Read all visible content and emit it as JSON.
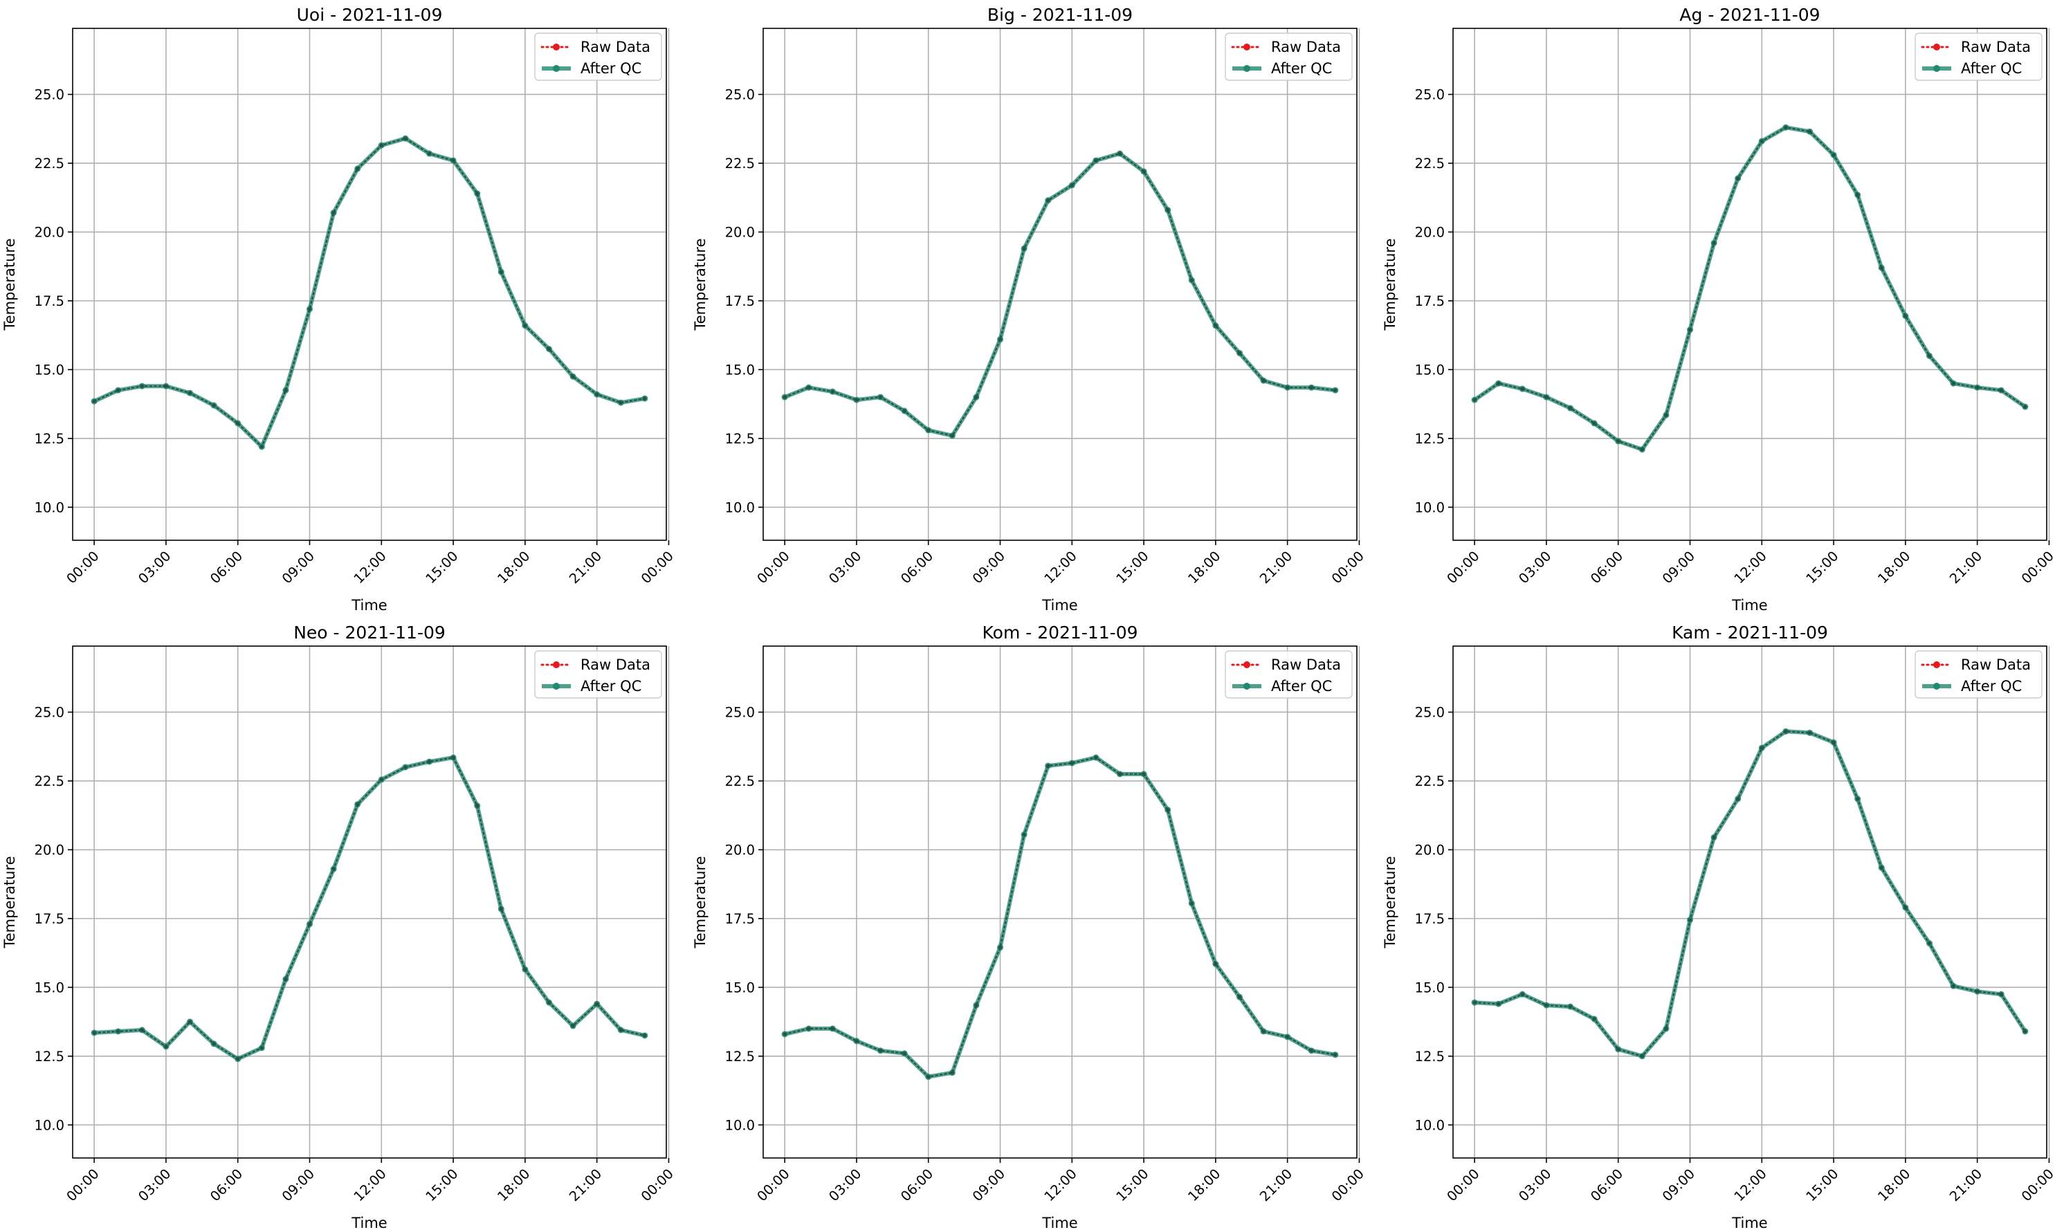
{
  "figure": {
    "layout": "2x3 grid of line charts"
  },
  "chart_data": [
    {
      "type": "line",
      "title": "Uoi - 2021-11-09",
      "xlabel": "Time",
      "ylabel": "Temperature",
      "x_ticks": [
        "00:00",
        "03:00",
        "06:00",
        "09:00",
        "12:00",
        "15:00",
        "18:00",
        "21:00",
        "00:00"
      ],
      "y_ticks": [
        "10.0",
        "12.5",
        "15.0",
        "17.5",
        "20.0",
        "22.5",
        "25.0"
      ],
      "ylim": [
        8.8,
        27.4
      ],
      "xlim_hours": [
        -0.9,
        23.9
      ],
      "grid": true,
      "legend": "top-right",
      "x_hours": [
        0,
        1,
        2,
        3,
        4,
        5,
        6,
        7,
        8,
        9,
        10,
        11,
        12,
        13,
        14,
        15,
        16,
        17,
        18,
        19,
        20,
        21,
        22,
        23
      ],
      "series": [
        {
          "name": "Raw Data",
          "style": "dotted",
          "color": "#e41a1c",
          "values": [
            13.85,
            14.25,
            14.4,
            14.4,
            14.15,
            13.7,
            13.05,
            12.2,
            14.25,
            17.2,
            20.7,
            22.3,
            23.15,
            23.4,
            22.85,
            22.6,
            21.4,
            18.55,
            16.6,
            15.75,
            14.75,
            14.1,
            13.8,
            13.95
          ]
        },
        {
          "name": "After QC",
          "style": "solid",
          "color": "#1f8a70",
          "values": [
            13.85,
            14.25,
            14.4,
            14.4,
            14.15,
            13.7,
            13.05,
            12.2,
            14.25,
            17.2,
            20.7,
            22.3,
            23.15,
            23.4,
            22.85,
            22.6,
            21.4,
            18.55,
            16.6,
            15.75,
            14.75,
            14.1,
            13.8,
            13.95
          ]
        }
      ]
    },
    {
      "type": "line",
      "title": "Big - 2021-11-09",
      "xlabel": "Time",
      "ylabel": "Temperature",
      "x_ticks": [
        "00:00",
        "03:00",
        "06:00",
        "09:00",
        "12:00",
        "15:00",
        "18:00",
        "21:00",
        "00:00"
      ],
      "y_ticks": [
        "10.0",
        "12.5",
        "15.0",
        "17.5",
        "20.0",
        "22.5",
        "25.0"
      ],
      "ylim": [
        8.8,
        27.4
      ],
      "xlim_hours": [
        -0.9,
        23.9
      ],
      "grid": true,
      "legend": "top-right",
      "x_hours": [
        0,
        1,
        2,
        3,
        4,
        5,
        6,
        7,
        8,
        9,
        10,
        11,
        12,
        13,
        14,
        15,
        16,
        17,
        18,
        19,
        20,
        21,
        22,
        23
      ],
      "series": [
        {
          "name": "Raw Data",
          "style": "dotted",
          "color": "#e41a1c",
          "values": [
            14.0,
            14.35,
            14.2,
            13.9,
            14.0,
            13.5,
            12.8,
            12.6,
            14.0,
            16.1,
            19.4,
            21.15,
            21.7,
            22.6,
            22.85,
            22.2,
            20.8,
            18.25,
            16.6,
            15.6,
            14.6,
            14.35,
            14.35,
            14.25
          ]
        },
        {
          "name": "After QC",
          "style": "solid",
          "color": "#1f8a70",
          "values": [
            14.0,
            14.35,
            14.2,
            13.9,
            14.0,
            13.5,
            12.8,
            12.6,
            14.0,
            16.1,
            19.4,
            21.15,
            21.7,
            22.6,
            22.85,
            22.2,
            20.8,
            18.25,
            16.6,
            15.6,
            14.6,
            14.35,
            14.35,
            14.25
          ]
        }
      ]
    },
    {
      "type": "line",
      "title": "Ag - 2021-11-09",
      "xlabel": "Time",
      "ylabel": "Temperature",
      "x_ticks": [
        "00:00",
        "03:00",
        "06:00",
        "09:00",
        "12:00",
        "15:00",
        "18:00",
        "21:00",
        "00:00"
      ],
      "y_ticks": [
        "10.0",
        "12.5",
        "15.0",
        "17.5",
        "20.0",
        "22.5",
        "25.0"
      ],
      "ylim": [
        8.8,
        27.4
      ],
      "xlim_hours": [
        -0.9,
        23.9
      ],
      "grid": true,
      "legend": "top-right",
      "x_hours": [
        0,
        1,
        2,
        3,
        4,
        5,
        6,
        7,
        8,
        9,
        10,
        11,
        12,
        13,
        14,
        15,
        16,
        17,
        18,
        19,
        20,
        21,
        22,
        23
      ],
      "series": [
        {
          "name": "Raw Data",
          "style": "dotted",
          "color": "#e41a1c",
          "values": [
            13.9,
            14.5,
            14.3,
            14.0,
            13.6,
            13.05,
            12.4,
            12.1,
            13.35,
            16.45,
            19.6,
            21.95,
            23.3,
            23.8,
            23.65,
            22.8,
            21.35,
            18.7,
            16.95,
            15.5,
            14.5,
            14.35,
            14.25,
            13.65
          ]
        },
        {
          "name": "After QC",
          "style": "solid",
          "color": "#1f8a70",
          "values": [
            13.9,
            14.5,
            14.3,
            14.0,
            13.6,
            13.05,
            12.4,
            12.1,
            13.35,
            16.45,
            19.6,
            21.95,
            23.3,
            23.8,
            23.65,
            22.8,
            21.35,
            18.7,
            16.95,
            15.5,
            14.5,
            14.35,
            14.25,
            13.65
          ]
        }
      ]
    },
    {
      "type": "line",
      "title": "Neo - 2021-11-09",
      "xlabel": "Time",
      "ylabel": "Temperature",
      "x_ticks": [
        "00:00",
        "03:00",
        "06:00",
        "09:00",
        "12:00",
        "15:00",
        "18:00",
        "21:00",
        "00:00"
      ],
      "y_ticks": [
        "10.0",
        "12.5",
        "15.0",
        "17.5",
        "20.0",
        "22.5",
        "25.0"
      ],
      "ylim": [
        8.8,
        27.4
      ],
      "xlim_hours": [
        -0.9,
        23.9
      ],
      "grid": true,
      "legend": "top-right",
      "x_hours": [
        0,
        1,
        2,
        3,
        4,
        5,
        6,
        7,
        8,
        9,
        10,
        11,
        12,
        13,
        14,
        15,
        16,
        17,
        18,
        19,
        20,
        21,
        22,
        23
      ],
      "series": [
        {
          "name": "Raw Data",
          "style": "dotted",
          "color": "#e41a1c",
          "values": [
            13.35,
            13.4,
            13.45,
            12.85,
            13.75,
            12.95,
            12.4,
            12.8,
            15.3,
            17.3,
            19.3,
            21.65,
            22.55,
            23.0,
            23.2,
            23.35,
            21.6,
            17.85,
            15.65,
            14.45,
            13.6,
            14.4,
            13.45,
            13.25
          ]
        },
        {
          "name": "After QC",
          "style": "solid",
          "color": "#1f8a70",
          "values": [
            13.35,
            13.4,
            13.45,
            12.85,
            13.75,
            12.95,
            12.4,
            12.8,
            15.3,
            17.3,
            19.3,
            21.65,
            22.55,
            23.0,
            23.2,
            23.35,
            21.6,
            17.85,
            15.65,
            14.45,
            13.6,
            14.4,
            13.45,
            13.25
          ]
        }
      ]
    },
    {
      "type": "line",
      "title": "Kom - 2021-11-09",
      "xlabel": "Time",
      "ylabel": "Temperature",
      "x_ticks": [
        "00:00",
        "03:00",
        "06:00",
        "09:00",
        "12:00",
        "15:00",
        "18:00",
        "21:00",
        "00:00"
      ],
      "y_ticks": [
        "10.0",
        "12.5",
        "15.0",
        "17.5",
        "20.0",
        "22.5",
        "25.0"
      ],
      "ylim": [
        8.8,
        27.4
      ],
      "xlim_hours": [
        -0.9,
        23.9
      ],
      "grid": true,
      "legend": "top-right",
      "x_hours": [
        0,
        1,
        2,
        3,
        4,
        5,
        6,
        7,
        8,
        9,
        10,
        11,
        12,
        13,
        14,
        15,
        16,
        17,
        18,
        19,
        20,
        21,
        22,
        23
      ],
      "series": [
        {
          "name": "Raw Data",
          "style": "dotted",
          "color": "#e41a1c",
          "values": [
            13.3,
            13.5,
            13.5,
            13.05,
            12.7,
            12.6,
            11.75,
            11.9,
            14.35,
            16.45,
            20.55,
            23.05,
            23.15,
            23.35,
            22.75,
            22.75,
            21.45,
            18.05,
            15.85,
            14.65,
            13.4,
            13.2,
            12.7,
            12.55
          ]
        },
        {
          "name": "After QC",
          "style": "solid",
          "color": "#1f8a70",
          "values": [
            13.3,
            13.5,
            13.5,
            13.05,
            12.7,
            12.6,
            11.75,
            11.9,
            14.35,
            16.45,
            20.55,
            23.05,
            23.15,
            23.35,
            22.75,
            22.75,
            21.45,
            18.05,
            15.85,
            14.65,
            13.4,
            13.2,
            12.7,
            12.55
          ]
        }
      ]
    },
    {
      "type": "line",
      "title": "Kam - 2021-11-09",
      "xlabel": "Time",
      "ylabel": "Temperature",
      "x_ticks": [
        "00:00",
        "03:00",
        "06:00",
        "09:00",
        "12:00",
        "15:00",
        "18:00",
        "21:00",
        "00:00"
      ],
      "y_ticks": [
        "10.0",
        "12.5",
        "15.0",
        "17.5",
        "20.0",
        "22.5",
        "25.0"
      ],
      "ylim": [
        8.8,
        27.4
      ],
      "xlim_hours": [
        -0.9,
        23.9
      ],
      "grid": true,
      "legend": "top-right",
      "x_hours": [
        0,
        1,
        2,
        3,
        4,
        5,
        6,
        7,
        8,
        9,
        10,
        11,
        12,
        13,
        14,
        15,
        16,
        17,
        18,
        19,
        20,
        21,
        22,
        23
      ],
      "series": [
        {
          "name": "Raw Data",
          "style": "dotted",
          "color": "#e41a1c",
          "values": [
            14.45,
            14.4,
            14.75,
            14.35,
            14.3,
            13.85,
            12.75,
            12.5,
            13.5,
            17.45,
            20.45,
            21.85,
            23.7,
            24.3,
            24.25,
            23.9,
            21.85,
            19.35,
            17.9,
            16.6,
            15.05,
            14.85,
            14.75,
            13.4
          ]
        },
        {
          "name": "After QC",
          "style": "solid",
          "color": "#1f8a70",
          "values": [
            14.45,
            14.4,
            14.75,
            14.35,
            14.3,
            13.85,
            12.75,
            12.5,
            13.5,
            17.45,
            20.45,
            21.85,
            23.7,
            24.3,
            24.25,
            23.9,
            21.85,
            19.35,
            17.9,
            16.6,
            15.05,
            14.85,
            14.75,
            13.4
          ]
        }
      ]
    }
  ]
}
